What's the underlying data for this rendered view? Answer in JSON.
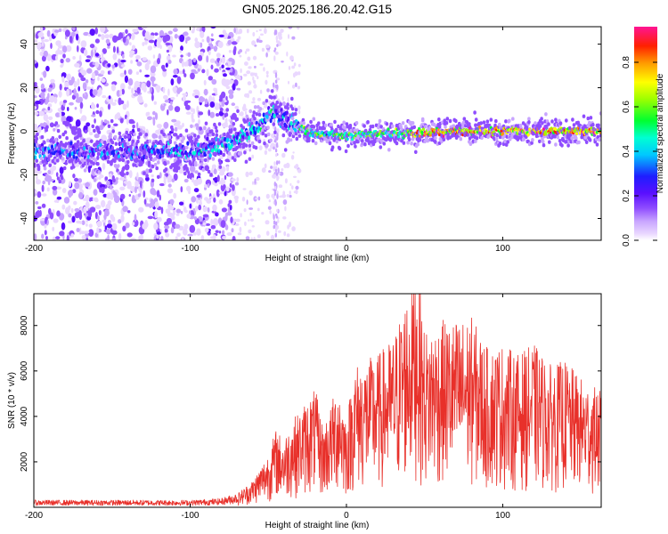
{
  "figure_title": "GN05.2025.186.20.42.G15",
  "chart_data": [
    {
      "type": "heatmap",
      "title": "",
      "xlabel": "Height of straight line (km)",
      "ylabel": "Frequency (Hz)",
      "xlim": [
        -200,
        163
      ],
      "ylim": [
        -50,
        48
      ],
      "xticks": [
        -200,
        -100,
        0,
        100
      ],
      "yticks": [
        -40,
        -20,
        0,
        20,
        40
      ],
      "colorbar": {
        "label": "Normalized spectral amplitude",
        "range": [
          0,
          0.96
        ],
        "ticks": [
          0.0,
          0.2,
          0.4,
          0.6,
          0.8
        ]
      },
      "ridge": {
        "x": [
          -200,
          -150,
          -120,
          -100,
          -85,
          -75,
          -65,
          -55,
          -50,
          -45,
          -40,
          -35,
          -30,
          -25,
          -20,
          0,
          20,
          40,
          60,
          80,
          100,
          130,
          163
        ],
        "frequency": [
          -9,
          -9,
          -9,
          -10,
          -7,
          -5,
          -2,
          3,
          7,
          9,
          6,
          4,
          2,
          0,
          -1,
          -2,
          -1,
          -1,
          0,
          0,
          0,
          0,
          0
        ]
      }
    },
    {
      "type": "line",
      "title": "",
      "xlabel": "Height of straight line (km)",
      "ylabel": "SNR (10 * v/v)",
      "xlim": [
        -200,
        163
      ],
      "ylim": [
        0,
        9400
      ],
      "xticks": [
        -200,
        -100,
        0,
        100
      ],
      "yticks": [
        2000,
        4000,
        6000,
        8000
      ],
      "series": [
        {
          "color": "#e8302a",
          "envelope": {
            "x": [
              -200,
              -150,
              -100,
              -80,
              -70,
              -60,
              -55,
              -50,
              -45,
              -40,
              -35,
              -30,
              -25,
              -20,
              -15,
              -10,
              -5,
              0,
              5,
              10,
              20,
              30,
              40,
              45,
              50,
              60,
              70,
              80,
              90,
              100,
              110,
              120,
              130,
              140,
              150,
              160,
              163
            ],
            "y": [
              200,
              200,
              200,
              250,
              400,
              800,
              1200,
              1600,
              2300,
              2000,
              2600,
              2800,
              3200,
              3500,
              2400,
              3000,
              3800,
              2600,
              4200,
              4300,
              4500,
              5000,
              6500,
              7400,
              5200,
              5500,
              5500,
              5600,
              4700,
              4800,
              4500,
              4800,
              4200,
              4300,
              3800,
              3500,
              3400
            ]
          }
        }
      ]
    }
  ]
}
